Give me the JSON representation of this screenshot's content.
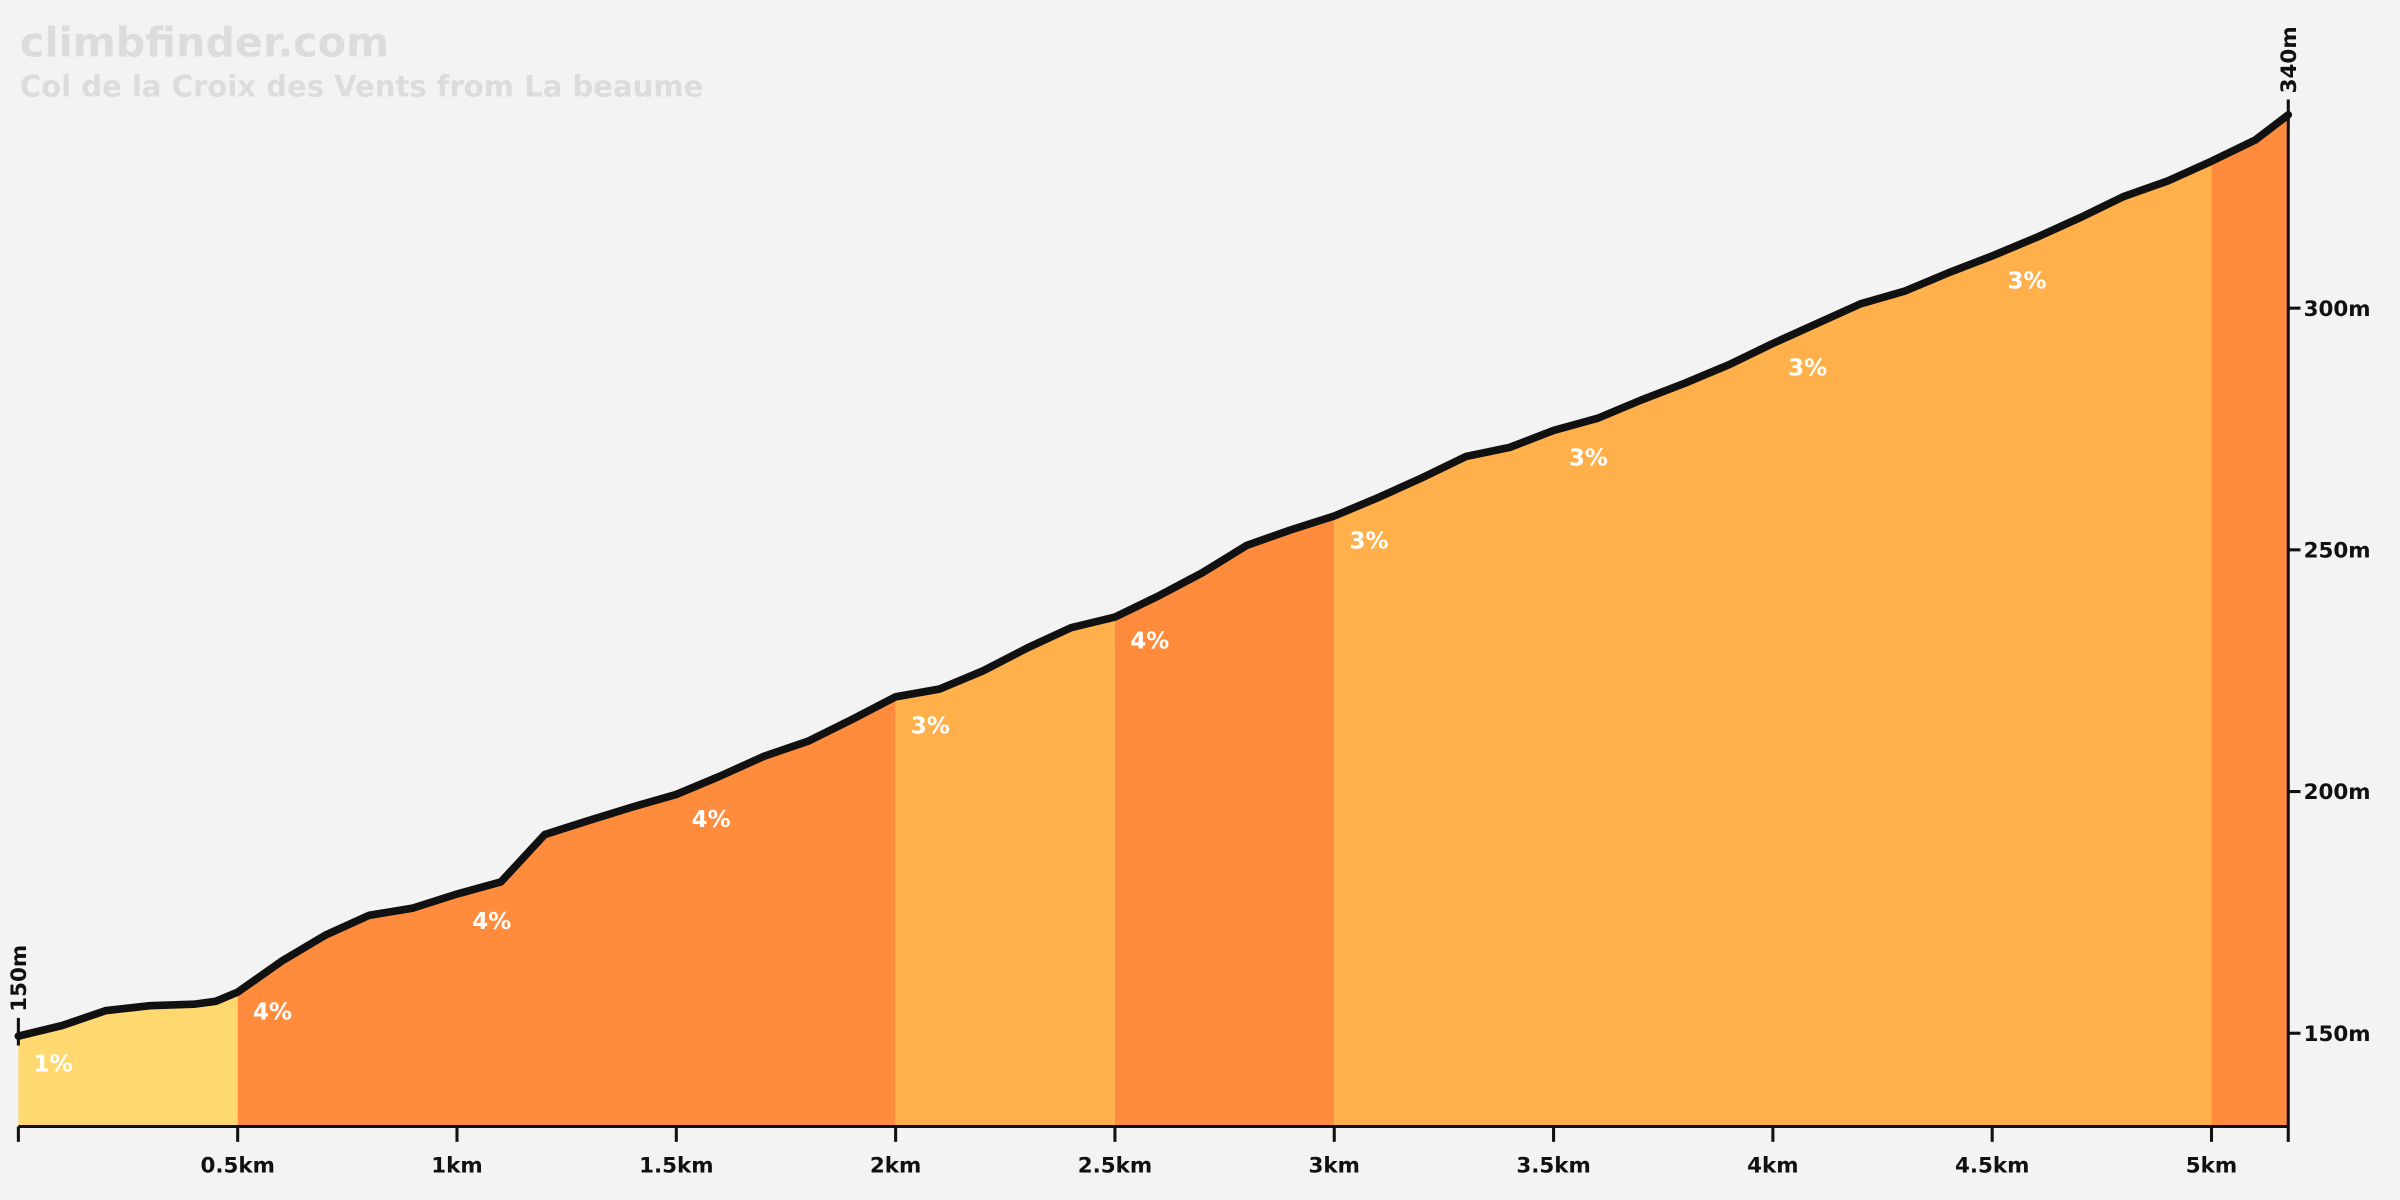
{
  "chart_data": {
    "type": "area",
    "title": "climbfinder.com",
    "subtitle": "Col de la Croix des Vents from La beaume",
    "x": [
      0,
      0.1,
      0.2,
      0.3,
      0.4,
      0.45,
      0.5,
      0.6,
      0.7,
      0.8,
      0.9,
      1.0,
      1.1,
      1.2,
      1.3,
      1.4,
      1.5,
      1.6,
      1.7,
      1.8,
      1.9,
      2.0,
      2.1,
      2.2,
      2.3,
      2.4,
      2.5,
      2.6,
      2.7,
      2.8,
      2.9,
      3.0,
      3.1,
      3.2,
      3.3,
      3.4,
      3.5,
      3.6,
      3.7,
      3.8,
      3.9,
      4.0,
      4.1,
      4.2,
      4.3,
      4.4,
      4.5,
      4.6,
      4.7,
      4.8,
      4.9,
      5.0,
      5.1,
      5.175
    ],
    "values": [
      149.4,
      151.6,
      154.7,
      155.7,
      156,
      156.6,
      158.5,
      164.9,
      170.3,
      174.4,
      175.9,
      178.8,
      181.3,
      191.1,
      194,
      196.8,
      199.4,
      203.2,
      207.3,
      210.4,
      214.9,
      219.6,
      221.2,
      225,
      229.7,
      233.9,
      236.1,
      240.5,
      245.3,
      250.9,
      254.1,
      257,
      260.8,
      264.9,
      269.3,
      271.2,
      274.7,
      277.2,
      281,
      284.5,
      288.3,
      292.7,
      296.8,
      300.9,
      303.5,
      307.3,
      310.8,
      314.6,
      318.7,
      323.1,
      326.3,
      330.4,
      334.8,
      340
    ],
    "line_color": "#111111",
    "segments": [
      {
        "start": 0,
        "end": 0.5,
        "color": "#ffd970"
      },
      {
        "start": 0.5,
        "end": 2,
        "color": "#ff8c3c"
      },
      {
        "start": 2,
        "end": 2.5,
        "color": "#ffb04a"
      },
      {
        "start": 2.5,
        "end": 3,
        "color": "#ff8c3c"
      },
      {
        "start": 3,
        "end": 5,
        "color": "#ffb04a"
      },
      {
        "start": 5,
        "end": 5.175,
        "color": "#ff8c3c"
      }
    ],
    "grade_labels": [
      {
        "x": 0,
        "label": "1%"
      },
      {
        "x": 0.5,
        "label": "4%"
      },
      {
        "x": 1,
        "label": "4%"
      },
      {
        "x": 1.5,
        "label": "4%"
      },
      {
        "x": 2,
        "label": "3%"
      },
      {
        "x": 2.5,
        "label": "4%"
      },
      {
        "x": 3,
        "label": "3%"
      },
      {
        "x": 3.5,
        "label": "3%"
      },
      {
        "x": 4,
        "label": "3%"
      },
      {
        "x": 4.5,
        "label": "3%"
      }
    ],
    "xlim": [
      0,
      5.175
    ],
    "ylim": [
      130.7,
      340
    ],
    "xticks": [
      {
        "value": 0.5,
        "label": "0.5km"
      },
      {
        "value": 1,
        "label": "1km"
      },
      {
        "value": 1.5,
        "label": "1.5km"
      },
      {
        "value": 2,
        "label": "2km"
      },
      {
        "value": 2.5,
        "label": "2.5km"
      },
      {
        "value": 3,
        "label": "3km"
      },
      {
        "value": 3.5,
        "label": "3.5km"
      },
      {
        "value": 4,
        "label": "4km"
      },
      {
        "value": 4.5,
        "label": "4.5km"
      },
      {
        "value": 5,
        "label": "5km"
      }
    ],
    "yticks": [
      {
        "value": 150,
        "label": "150m"
      },
      {
        "value": 200,
        "label": "200m"
      },
      {
        "value": 250,
        "label": "250m"
      },
      {
        "value": 300,
        "label": "300m"
      }
    ],
    "start_label": {
      "value": 150,
      "label": "150m"
    },
    "end_label": {
      "value": 340,
      "label": "340m"
    }
  }
}
